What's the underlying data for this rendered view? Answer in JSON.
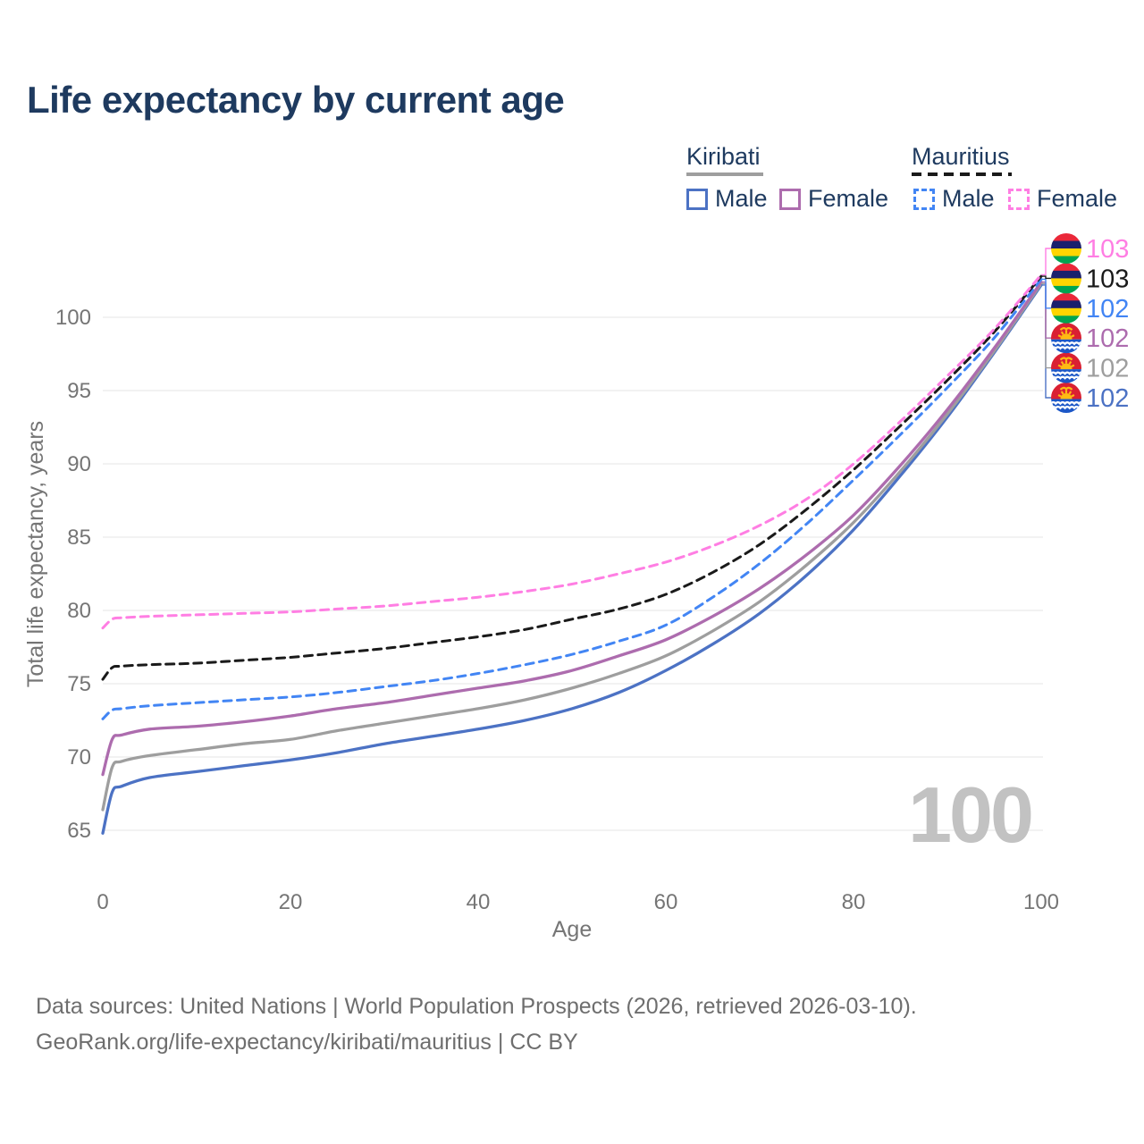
{
  "title": "Life expectancy by current age",
  "legend": {
    "groups": [
      {
        "country": "Kiribati",
        "line_style": "solid",
        "underline_color": "#9E9E9E",
        "items": [
          {
            "label": "Male",
            "color": "#4C72C4"
          },
          {
            "label": "Female",
            "color": "#AD6CAE"
          }
        ]
      },
      {
        "country": "Mauritius",
        "line_style": "dashed",
        "underline_color": "#1A1A1A",
        "items": [
          {
            "label": "Male",
            "color": "#4285F4"
          },
          {
            "label": "Female",
            "color": "#FF7EE3"
          }
        ]
      }
    ]
  },
  "chart_data": {
    "type": "line",
    "title": "Life expectancy by current age",
    "xlabel": "Age",
    "ylabel": "Total life expectancy, years",
    "x": [
      0,
      1,
      2,
      5,
      10,
      15,
      20,
      25,
      30,
      35,
      40,
      45,
      50,
      55,
      60,
      65,
      70,
      75,
      80,
      85,
      90,
      95,
      100
    ],
    "xticks": [
      0,
      20,
      40,
      60,
      80,
      100
    ],
    "yticks": [
      65,
      70,
      75,
      80,
      85,
      90,
      95,
      100
    ],
    "xlim": [
      0,
      100
    ],
    "ylim": [
      63,
      104
    ],
    "grid": "horizontal",
    "legend_position": "top-right",
    "watermark": "100",
    "series": [
      {
        "name": "Kiribati Male",
        "country": "Kiribati",
        "sex": "Male",
        "color": "#4C72C4",
        "dashed": false,
        "flag": "kiribati",
        "end_label": "102",
        "label_row": 5,
        "values": [
          64.8,
          67.6,
          68.0,
          68.6,
          69.0,
          69.4,
          69.8,
          70.3,
          70.9,
          71.4,
          71.9,
          72.5,
          73.3,
          74.4,
          75.9,
          77.7,
          79.8,
          82.4,
          85.5,
          89.2,
          93.2,
          97.6,
          102.2
        ]
      },
      {
        "name": "Kiribati Both sexes",
        "country": "Kiribati",
        "sex": "Both",
        "color": "#9E9E9E",
        "dashed": false,
        "flag": "kiribati",
        "end_label": "102",
        "label_row": 4,
        "values": [
          66.4,
          69.3,
          69.7,
          70.1,
          70.5,
          70.9,
          71.2,
          71.8,
          72.3,
          72.8,
          73.3,
          73.9,
          74.7,
          75.7,
          76.9,
          78.6,
          80.6,
          83.1,
          86.0,
          89.5,
          93.4,
          97.7,
          102.3
        ]
      },
      {
        "name": "Kiribati Female",
        "country": "Kiribati",
        "sex": "Female",
        "color": "#AD6CAE",
        "dashed": false,
        "flag": "kiribati",
        "end_label": "102",
        "label_row": 3,
        "values": [
          68.8,
          71.2,
          71.5,
          71.9,
          72.1,
          72.4,
          72.8,
          73.3,
          73.7,
          74.2,
          74.7,
          75.2,
          75.9,
          76.9,
          78.0,
          79.6,
          81.5,
          83.8,
          86.5,
          89.9,
          93.7,
          97.9,
          102.4
        ]
      },
      {
        "name": "Mauritius Male",
        "country": "Mauritius",
        "sex": "Male",
        "color": "#4285F4",
        "dashed": true,
        "flag": "mauritius",
        "end_label": "102",
        "label_row": 2,
        "values": [
          72.6,
          73.2,
          73.3,
          73.5,
          73.7,
          73.9,
          74.1,
          74.4,
          74.8,
          75.2,
          75.7,
          76.3,
          77.0,
          77.9,
          79.0,
          80.9,
          83.2,
          85.9,
          88.9,
          92.0,
          95.2,
          98.6,
          102.6
        ]
      },
      {
        "name": "Mauritius Both sexes",
        "country": "Mauritius",
        "sex": "Both",
        "color": "#1A1A1A",
        "dashed": true,
        "flag": "mauritius",
        "end_label": "103",
        "label_row": 1,
        "values": [
          75.3,
          76.1,
          76.2,
          76.3,
          76.4,
          76.6,
          76.8,
          77.1,
          77.4,
          77.8,
          78.2,
          78.7,
          79.4,
          80.1,
          81.1,
          82.6,
          84.5,
          86.9,
          89.6,
          92.6,
          95.7,
          99.0,
          102.8
        ]
      },
      {
        "name": "Mauritius Female",
        "country": "Mauritius",
        "sex": "Female",
        "color": "#FF7EE3",
        "dashed": true,
        "flag": "mauritius",
        "end_label": "103",
        "label_row": 0,
        "values": [
          78.8,
          79.4,
          79.5,
          79.6,
          79.7,
          79.8,
          79.9,
          80.1,
          80.3,
          80.6,
          80.9,
          81.3,
          81.8,
          82.5,
          83.3,
          84.4,
          85.8,
          87.6,
          90.0,
          92.9,
          96.0,
          99.2,
          102.9
        ]
      }
    ]
  },
  "footer": {
    "line1": "Data sources: United Nations | World Population Prospects (2026, retrieved 2026-03-10).",
    "line2": "GeoRank.org/life-expectancy/kiribati/mauritius | CC BY"
  },
  "colors": {
    "title_text": "#1E3A5F",
    "axis_text": "#757575",
    "grid": "#EBEBEB",
    "watermark": "#C2C2C2",
    "footer_text": "#6E6E6E"
  }
}
